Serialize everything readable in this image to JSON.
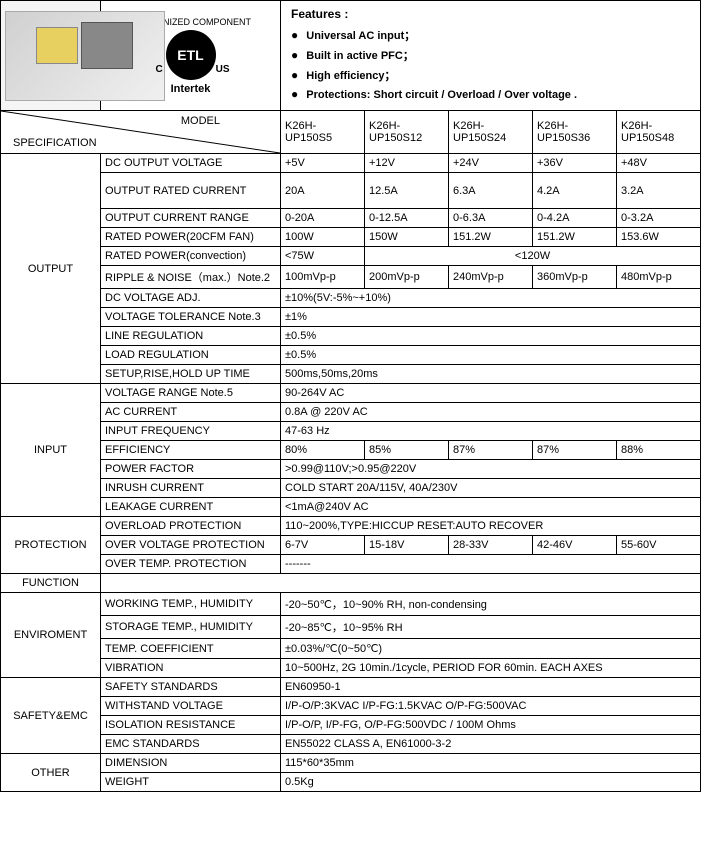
{
  "header": {
    "cert_top": "RECOGNIZED COMPONENT",
    "cert_logo": "ETL",
    "cert_bottom": "Intertek",
    "features_title": "Features :",
    "features": [
      "Universal AC input；",
      "Built in active PFC；",
      "High efficiency；",
      "Protections: Short circuit / Overload / Over voltage ."
    ]
  },
  "model_row": {
    "model_label": "MODEL",
    "spec_label": "SPECIFICATION",
    "models": [
      "K26H-UP150S5",
      "K26H-UP150S12",
      "K26H-UP150S24",
      "K26H-UP150S36",
      "K26H-UP150S48"
    ]
  },
  "sections": {
    "output": {
      "label": "OUTPUT",
      "rows": [
        {
          "param": "DC OUTPUT VOLTAGE",
          "vals": [
            "+5V",
            "+12V",
            "+24V",
            "+36V",
            "+48V"
          ]
        },
        {
          "param": "OUTPUT RATED CURRENT",
          "vals": [
            "20A",
            "12.5A",
            "6.3A",
            "4.2A",
            "3.2A"
          ],
          "tall": true
        },
        {
          "param": "OUTPUT CURRENT RANGE",
          "vals": [
            "0-20A",
            "0-12.5A",
            "0-6.3A",
            "0-4.2A",
            "0-3.2A"
          ]
        },
        {
          "param": "RATED POWER(20CFM FAN)",
          "vals": [
            "100W",
            "150W",
            "151.2W",
            "151.2W",
            "153.6W"
          ]
        },
        {
          "param": "RATED POWER(convection)",
          "span": [
            {
              "text": "<75W",
              "cols": 1
            },
            {
              "text": "<120W",
              "cols": 4,
              "center": true
            }
          ]
        },
        {
          "param": "RIPPLE & NOISE（max.）Note.2",
          "vals": [
            "100mVp-p",
            "200mVp-p",
            "240mVp-p",
            "360mVp-p",
            "480mVp-p"
          ]
        },
        {
          "param": "DC VOLTAGE ADJ.",
          "full": "±10%(5V:-5%~+10%)"
        },
        {
          "param": "VOLTAGE TOLERANCE    Note.3",
          "full": "±1%"
        },
        {
          "param": "LINE REGULATION",
          "full": "±0.5%"
        },
        {
          "param": "LOAD REGULATION",
          "full": "±0.5%"
        },
        {
          "param": "SETUP,RISE,HOLD UP TIME",
          "full": "500ms,50ms,20ms"
        }
      ]
    },
    "input": {
      "label": "INPUT",
      "rows": [
        {
          "param": "VOLTAGE RANGE          Note.5",
          "full": "90-264V AC"
        },
        {
          "param": "AC CURRENT",
          "full": "0.8A @ 220V AC"
        },
        {
          "param": "INPUT FREQUENCY",
          "full": "47-63 Hz"
        },
        {
          "param": "EFFICIENCY",
          "vals": [
            "80%",
            "85%",
            "87%",
            "87%",
            "88%"
          ]
        },
        {
          "param": "POWER FACTOR",
          "full": ">0.99@110V;>0.95@220V"
        },
        {
          "param": "INRUSH CURRENT",
          "full": "COLD START 20A/115V,  40A/230V"
        },
        {
          "param": "LEAKAGE CURRENT",
          "full": "<1mA@240V AC"
        }
      ]
    },
    "protection": {
      "label": "PROTECTION",
      "rows": [
        {
          "param": "OVERLOAD PROTECTION",
          "full": "110~200%,TYPE:HICCUP RESET:AUTO RECOVER"
        },
        {
          "param": "OVER VOLTAGE PROTECTION",
          "vals": [
            "6-7V",
            "15-18V",
            "28-33V",
            "42-46V",
            "55-60V"
          ]
        },
        {
          "param": "OVER TEMP. PROTECTION",
          "full": "-------"
        }
      ]
    },
    "function": {
      "label": "FUNCTION",
      "rows": [
        {
          "blank": true
        }
      ]
    },
    "environment": {
      "label": "ENVIROMENT",
      "rows": [
        {
          "param": "WORKING TEMP., HUMIDITY",
          "full": "-20~50℃，10~90% RH,     non-condensing"
        },
        {
          "param": "STORAGE TEMP., HUMIDITY",
          "full": "-20~85℃，10~95% RH"
        },
        {
          "param": "TEMP. COEFFICIENT",
          "full": "±0.03%/℃(0~50℃)"
        },
        {
          "param": "VIBRATION",
          "full": "10~500Hz, 2G 10min./1cycle, PERIOD FOR 60min. EACH AXES"
        }
      ]
    },
    "safety": {
      "label": "SAFETY&EMC",
      "rows": [
        {
          "param": "SAFETY STANDARDS",
          "full": "EN60950-1"
        },
        {
          "param": "WITHSTAND VOLTAGE",
          "full": "I/P-O/P:3KVAC I/P-FG:1.5KVAC O/P-FG:500VAC"
        },
        {
          "param": "ISOLATION RESISTANCE",
          "full": "I/P-O/P, I/P-FG, O/P-FG:500VDC / 100M Ohms"
        },
        {
          "param": "EMC STANDARDS",
          "full": "EN55022 CLASS A, EN61000-3-2"
        }
      ]
    },
    "other": {
      "label": "OTHER",
      "rows": [
        {
          "param": "DIMENSION",
          "full": "115*60*35mm"
        },
        {
          "param": "WEIGHT",
          "full": "0.5Kg"
        }
      ]
    }
  }
}
